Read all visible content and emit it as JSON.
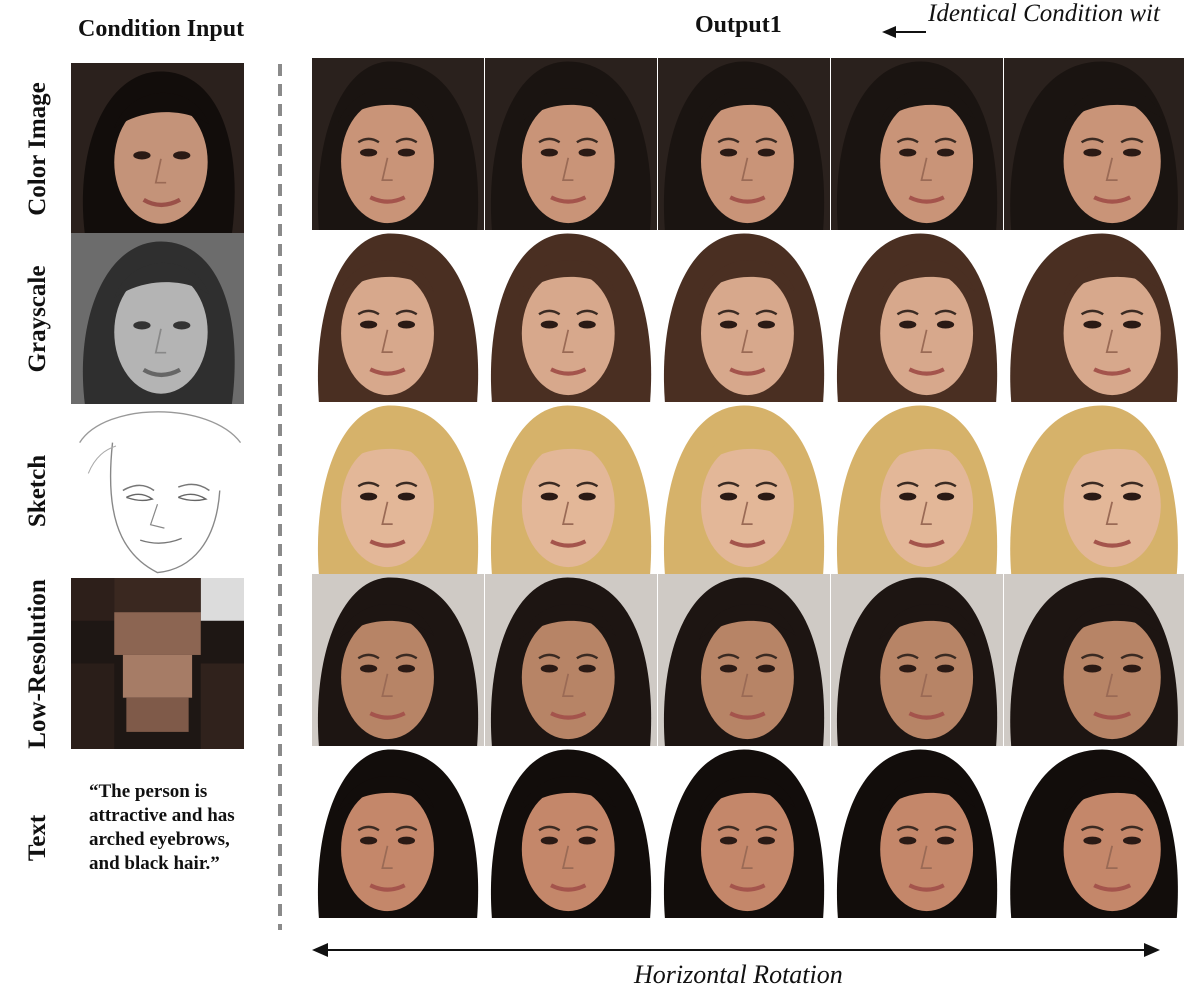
{
  "header": {
    "condition_title": "Condition Input",
    "output_title": "Output1",
    "identical_label": "Identical Condition wit"
  },
  "rows": [
    {
      "label": "Color Image",
      "cond": "color",
      "skin": "#c99478",
      "hair": "#1a1411",
      "bg": "#2a211d"
    },
    {
      "label": "Grayscale",
      "cond": "gray",
      "skin": "#d7a88c",
      "hair": "#4a2f22",
      "bg": "#ffffff"
    },
    {
      "label": "Sketch",
      "cond": "sketch",
      "skin": "#e3b798",
      "hair": "#d6b26a",
      "bg": "#ffffff"
    },
    {
      "label": "Low-Resolution",
      "cond": "lowres",
      "skin": "#b78466",
      "hair": "#1d1512",
      "bg": "#cfcac5"
    },
    {
      "label": "Text",
      "cond": "text",
      "skin": "#c4876a",
      "hair": "#120d0b",
      "bg": "#ffffff"
    }
  ],
  "text_condition": "“The person is attractive and has arched eyebrows, and black hair.”",
  "axis": {
    "rotation_label": "Horizontal Rotation"
  },
  "icons": {
    "left_arrow": "left-arrow-icon",
    "double_arrow": "double-headed-arrow-icon"
  }
}
